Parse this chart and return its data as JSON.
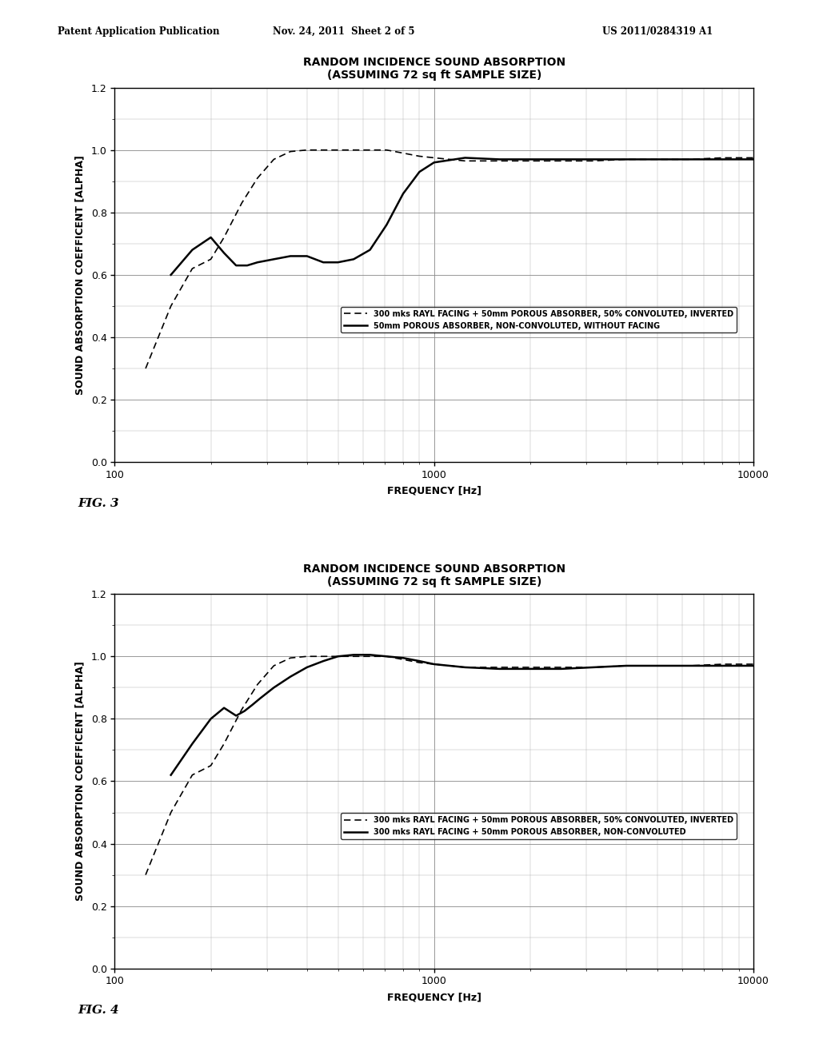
{
  "header_left": "Patent Application Publication",
  "header_center": "Nov. 24, 2011  Sheet 2 of 5",
  "header_right": "US 2011/0284319 A1",
  "background_color": "#ffffff",
  "fig3": {
    "title_line1": "RANDOM INCIDENCE SOUND ABSORPTION",
    "title_line2": "(ASSUMING 72 sq ft SAMPLE SIZE)",
    "xlabel": "FREQUENCY [Hz]",
    "ylabel": "SOUND ABSORPTION COEFFICENT [ALPHA]",
    "fig_label": "FIG. 3",
    "xlim": [
      100,
      10000
    ],
    "ylim": [
      0.0,
      1.2
    ],
    "yticks": [
      0.0,
      0.2,
      0.4,
      0.6,
      0.8,
      1.0,
      1.2
    ],
    "legend1": "300 mks RAYL FACING + 50mm POROUS ABSORBER, 50% CONVOLUTED, INVERTED",
    "legend2": "50mm POROUS ABSORBER, NON-CONVOLUTED, WITHOUT FACING",
    "dashed_x": [
      125,
      150,
      175,
      200,
      220,
      250,
      280,
      315,
      355,
      400,
      450,
      500,
      560,
      630,
      710,
      800,
      900,
      1000,
      1250,
      1600,
      2000,
      2500,
      3150,
      4000,
      5000,
      6300,
      8000,
      10000
    ],
    "dashed_y": [
      0.3,
      0.5,
      0.62,
      0.65,
      0.72,
      0.83,
      0.91,
      0.97,
      0.995,
      1.0,
      1.0,
      1.0,
      1.0,
      1.0,
      1.0,
      0.99,
      0.98,
      0.975,
      0.965,
      0.965,
      0.965,
      0.965,
      0.965,
      0.97,
      0.97,
      0.97,
      0.975,
      0.975
    ],
    "solid_x": [
      150,
      175,
      200,
      220,
      240,
      260,
      280,
      315,
      355,
      400,
      450,
      500,
      560,
      630,
      710,
      800,
      900,
      1000,
      1250,
      1600,
      2000,
      2500,
      3150,
      4000,
      5000,
      6300,
      8000,
      10000
    ],
    "solid_y": [
      0.6,
      0.68,
      0.72,
      0.67,
      0.63,
      0.63,
      0.64,
      0.65,
      0.66,
      0.66,
      0.64,
      0.64,
      0.65,
      0.68,
      0.76,
      0.86,
      0.93,
      0.96,
      0.975,
      0.97,
      0.97,
      0.97,
      0.97,
      0.97,
      0.97,
      0.97,
      0.97,
      0.97
    ]
  },
  "fig4": {
    "title_line1": "RANDOM INCIDENCE SOUND ABSORPTION",
    "title_line2": "(ASSUMING 72 sq ft SAMPLE SIZE)",
    "xlabel": "FREQUENCY [Hz]",
    "ylabel": "SOUND ABSORPTION COEFFICENT [ALPHA]",
    "fig_label": "FIG. 4",
    "xlim": [
      100,
      10000
    ],
    "ylim": [
      0.0,
      1.2
    ],
    "yticks": [
      0.0,
      0.2,
      0.4,
      0.6,
      0.8,
      1.0,
      1.2
    ],
    "legend1": "300 mks RAYL FACING + 50mm POROUS ABSORBER, 50% CONVOLUTED, INVERTED",
    "legend2": "300 mks RAYL FACING + 50mm POROUS ABSORBER, NON-CONVOLUTED",
    "dashed_x": [
      125,
      150,
      175,
      200,
      220,
      250,
      280,
      315,
      355,
      400,
      450,
      500,
      560,
      630,
      710,
      800,
      900,
      1000,
      1250,
      1600,
      2000,
      2500,
      3150,
      4000,
      5000,
      6300,
      8000,
      10000
    ],
    "dashed_y": [
      0.3,
      0.5,
      0.62,
      0.65,
      0.72,
      0.83,
      0.91,
      0.97,
      0.995,
      1.0,
      1.0,
      1.0,
      1.0,
      1.0,
      1.0,
      0.99,
      0.98,
      0.975,
      0.965,
      0.965,
      0.965,
      0.965,
      0.965,
      0.97,
      0.97,
      0.97,
      0.975,
      0.975
    ],
    "solid_x": [
      150,
      175,
      200,
      220,
      240,
      255,
      270,
      285,
      315,
      355,
      400,
      450,
      500,
      560,
      630,
      710,
      800,
      900,
      1000,
      1250,
      1600,
      2000,
      2500,
      3150,
      4000,
      5000,
      6300,
      8000,
      10000
    ],
    "solid_y": [
      0.62,
      0.72,
      0.8,
      0.835,
      0.81,
      0.825,
      0.845,
      0.865,
      0.9,
      0.935,
      0.965,
      0.985,
      1.0,
      1.005,
      1.005,
      1.0,
      0.995,
      0.985,
      0.975,
      0.965,
      0.96,
      0.96,
      0.96,
      0.965,
      0.97,
      0.97,
      0.97,
      0.97,
      0.97
    ]
  }
}
